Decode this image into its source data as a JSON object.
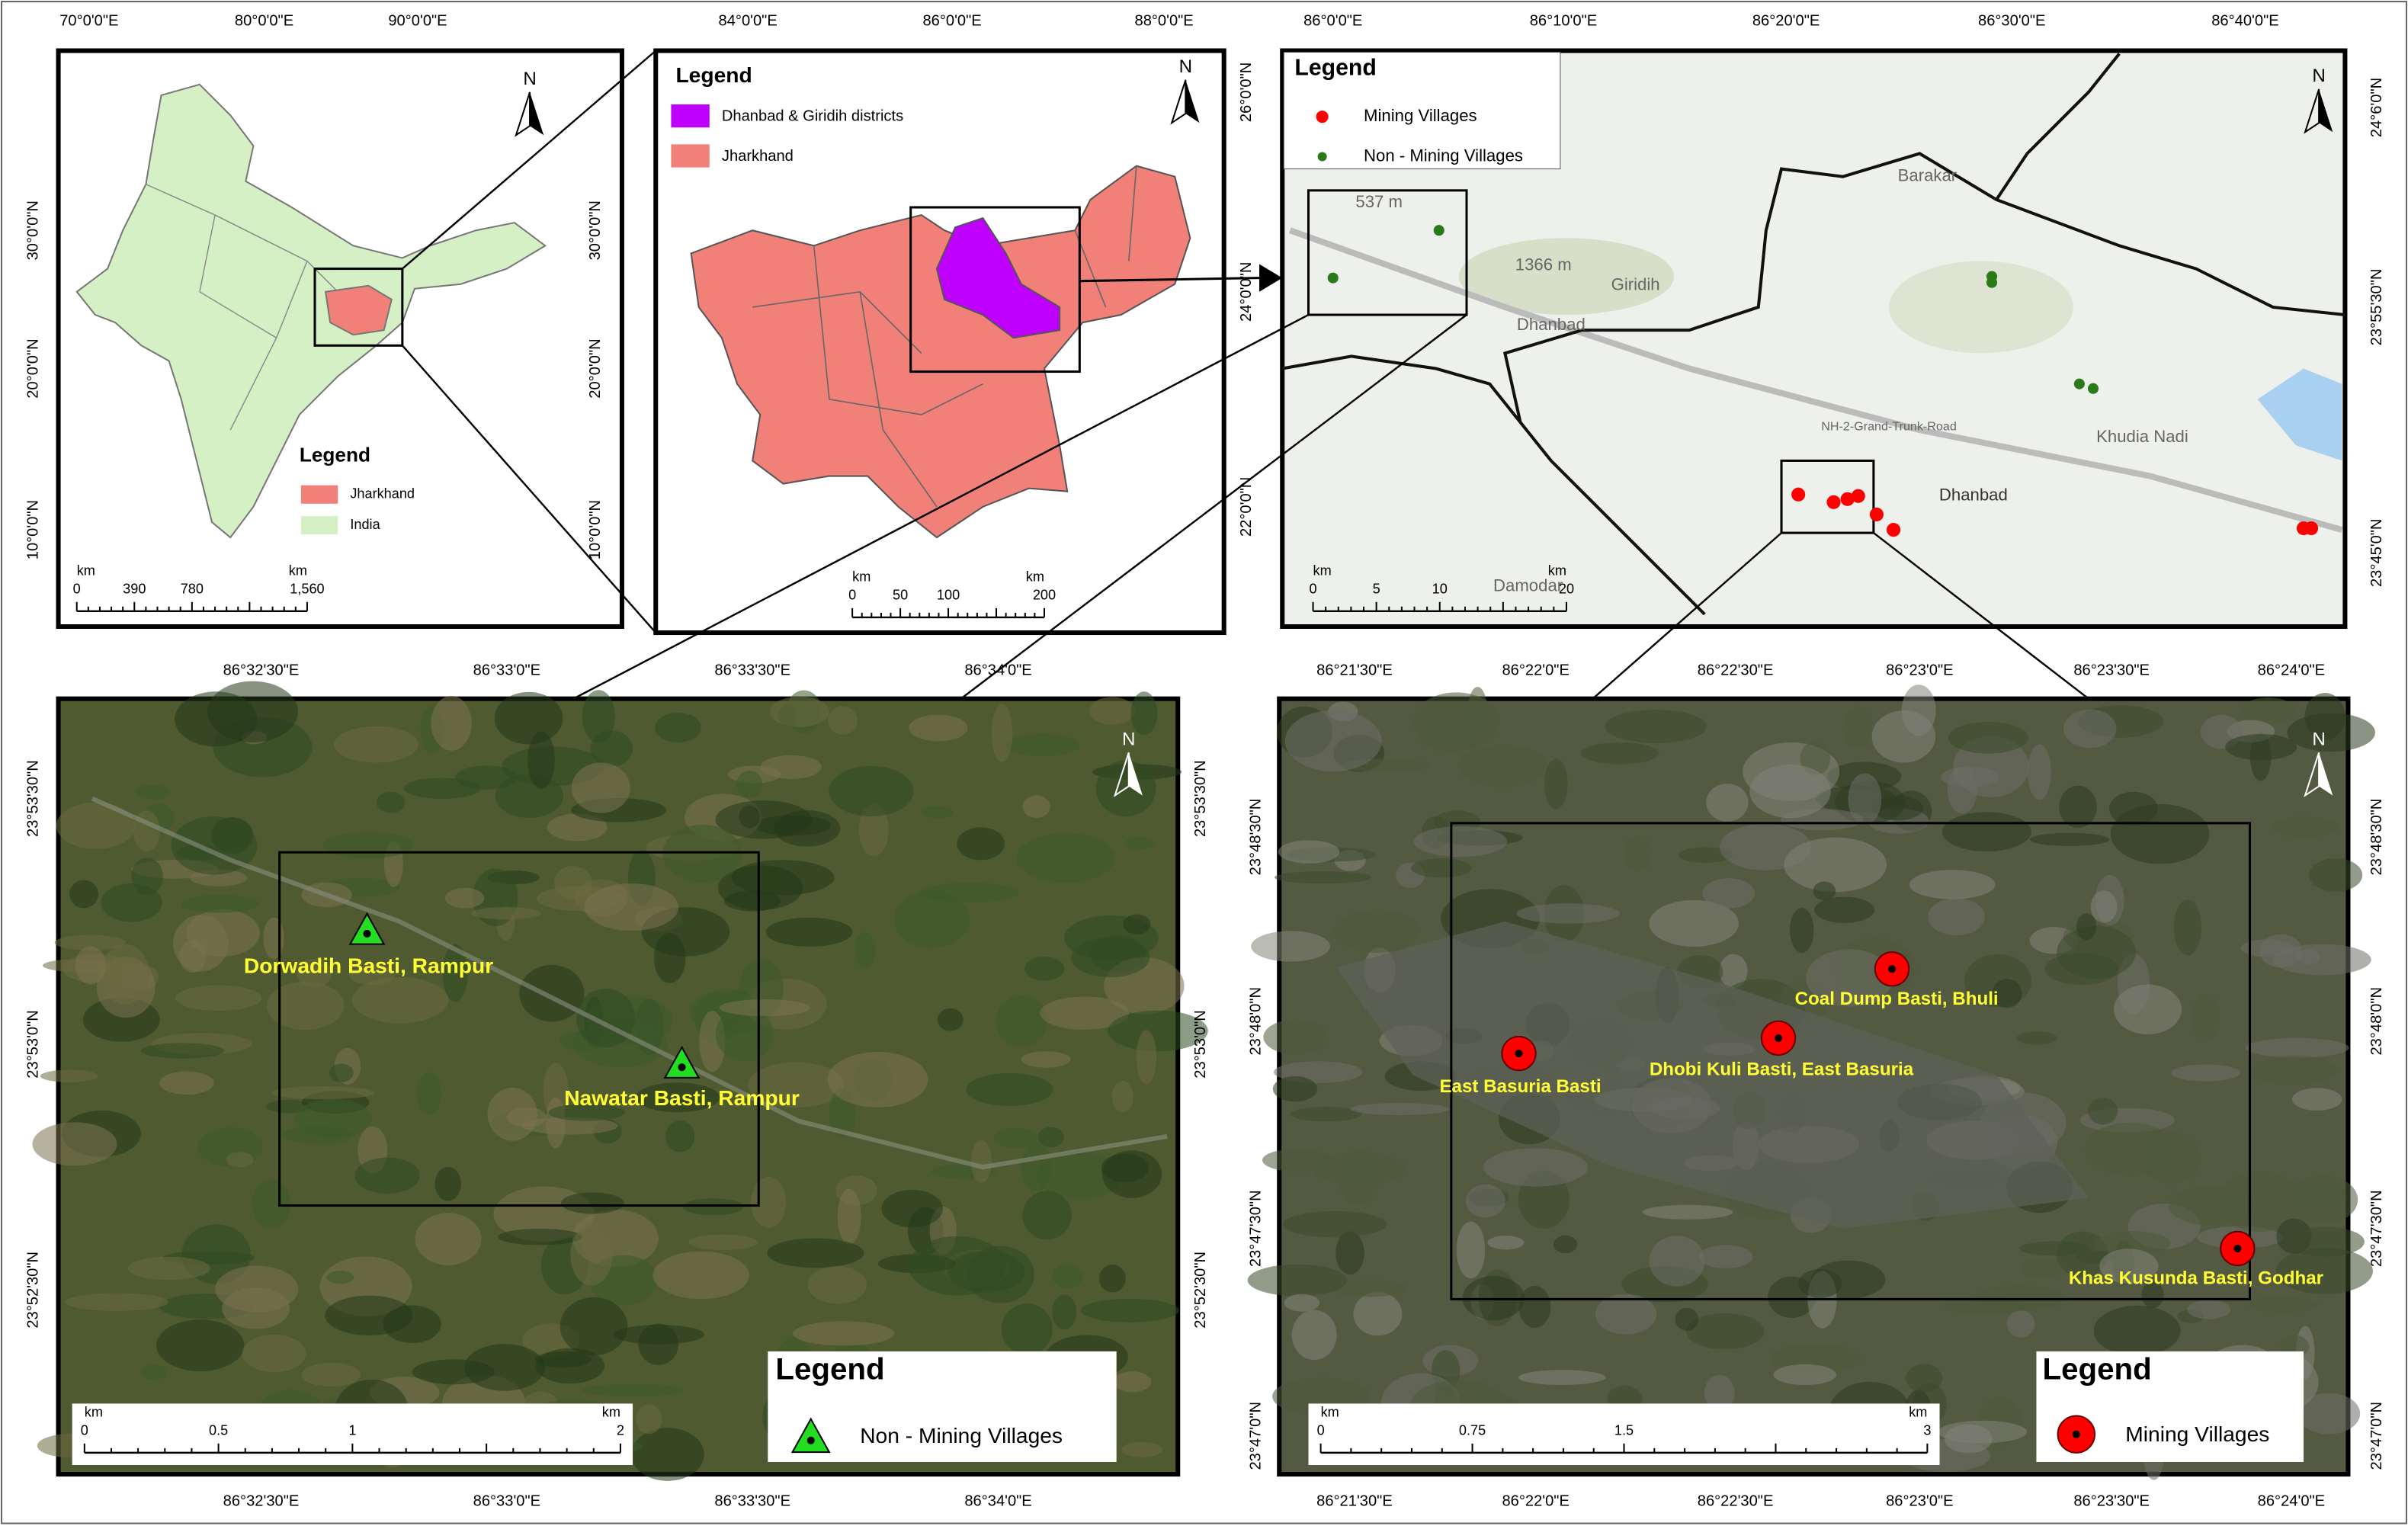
{
  "panels": {
    "india": {
      "lon_ticks": [
        "70°0'0\"E",
        "80°0'0\"E",
        "90°0'0\"E"
      ],
      "lat_ticks": [
        "30°0'0\"N",
        "20°0'0\"N",
        "10°0'0\"N"
      ],
      "north": "N",
      "legend": {
        "title": "Legend",
        "items": [
          "Jharkhand",
          "India"
        ]
      },
      "scale": {
        "unit": "km",
        "labels": [
          "0",
          "390",
          "780",
          "1,560"
        ]
      }
    },
    "jharkhand": {
      "lon_ticks": [
        "84°0'0\"E",
        "86°0'0\"E",
        "88°0'0\"E"
      ],
      "lat_ticks": [
        "26°0'0\"N",
        "24°0'0\"N",
        "22°0'0\"N"
      ],
      "north": "N",
      "legend": {
        "title": "Legend",
        "items": [
          "Dhanbad & Giridih districts",
          "Jharkhand"
        ]
      },
      "scale": {
        "unit": "km",
        "labels": [
          "0",
          "50",
          "100",
          "200"
        ]
      }
    },
    "dhanbad": {
      "lon_ticks": [
        "86°0'0\"E",
        "86°10'0\"E",
        "86°20'0\"E",
        "86°30'0\"E",
        "86°40'0\"E"
      ],
      "lat_ticks": [
        "24°6'0\"N",
        "23°55'30\"N",
        "23°45'0\"N"
      ],
      "north": "N",
      "legend": {
        "title": "Legend",
        "items": [
          "Mining Villages",
          "Non - Mining Villages"
        ]
      },
      "places": [
        "537 m",
        "1366 m",
        "Giridih",
        "Dhanbad",
        "NH-2-Grand-Trunk-Road",
        "Dhanbad",
        "Barakar",
        "Khudia Nadi",
        "Damodar"
      ],
      "scale": {
        "unit": "km",
        "labels": [
          "0",
          "5",
          "10",
          "20"
        ]
      }
    },
    "rampur": {
      "lon_ticks": [
        "86°32'30\"E",
        "86°33'0\"E",
        "86°33'30\"E",
        "86°34'0\"E"
      ],
      "lat_ticks": [
        "23°53'30\"N",
        "23°53'0\"N",
        "23°52'30\"N"
      ],
      "north": "N",
      "villages": [
        "Dorwadih Basti, Rampur",
        "Nawatar Basti, Rampur"
      ],
      "legend": {
        "title": "Legend",
        "items": [
          "Non - Mining Villages"
        ]
      },
      "scale": {
        "unit": "km",
        "labels": [
          "0",
          "0.5",
          "1",
          "2"
        ]
      }
    },
    "basuria": {
      "lon_ticks": [
        "86°21'30\"E",
        "86°22'0\"E",
        "86°22'30\"E",
        "86°23'0\"E",
        "86°23'30\"E",
        "86°24'0\"E"
      ],
      "lat_ticks": [
        "23°48'30\"N",
        "23°48'0\"N",
        "23°47'30\"N",
        "23°47'0\"N"
      ],
      "north": "N",
      "villages": [
        "Coal Dump Basti, Bhuli",
        "Dhobi Kuli Basti, East Basuria",
        "East Basuria Basti",
        "Khas Kusunda Basti, Godhar"
      ],
      "legend": {
        "title": "Legend",
        "items": [
          "Mining Villages"
        ]
      },
      "scale": {
        "unit": "km",
        "labels": [
          "0",
          "0.75",
          "1.5",
          "3"
        ]
      }
    }
  }
}
